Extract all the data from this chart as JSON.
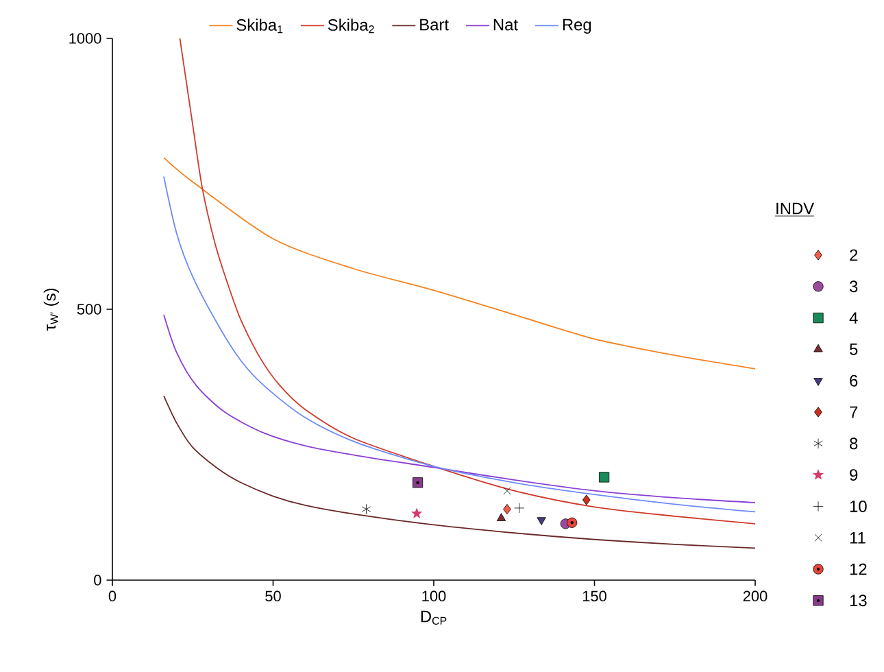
{
  "chart_data": {
    "type": "line",
    "xlabel": "D$_{CP}$",
    "ylabel": "τ$_{W′}$ (s)",
    "legend_title": "INDV",
    "legend": "right",
    "xlim": [
      0,
      200
    ],
    "ylim": [
      0,
      1000
    ],
    "xticks": [
      0,
      50,
      100,
      150,
      200
    ],
    "yticks": [
      0,
      500,
      1000
    ],
    "series": [
      {
        "name": "Skiba$_{1}$",
        "color": "#f58220",
        "x": [
          16,
          25,
          50,
          75,
          100,
          125,
          150,
          175,
          200
        ],
        "values": [
          780,
          735,
          630,
          575,
          535,
          490,
          445,
          415,
          390
        ]
      },
      {
        "name": "Skiba$_{2}$",
        "color": "#d03a2a",
        "x": [
          21,
          25,
          28,
          32,
          36,
          40,
          46,
          52,
          60,
          75,
          100,
          125,
          150,
          175,
          200
        ],
        "values": [
          1000,
          840,
          723,
          620,
          545,
          480,
          410,
          360,
          315,
          262,
          210,
          165,
          135,
          118,
          104
        ]
      },
      {
        "name": "Bart",
        "color": "#6b2a2a",
        "x": [
          16,
          20,
          25,
          33,
          40,
          50,
          60,
          75,
          100,
          125,
          150,
          175,
          200
        ],
        "values": [
          340,
          290,
          245,
          205,
          180,
          155,
          138,
          122,
          102,
          87,
          75,
          66,
          59
        ]
      },
      {
        "name": "Nat",
        "color": "#8a3fd6",
        "x": [
          16,
          20,
          26,
          35,
          47,
          60,
          76,
          100,
          125,
          150,
          175,
          200
        ],
        "values": [
          490,
          420,
          360,
          310,
          272,
          248,
          230,
          208,
          185,
          165,
          152,
          143
        ]
      },
      {
        "name": "Reg",
        "color": "#6d8cf5",
        "x": [
          16,
          20,
          25,
          33,
          40,
          47,
          60,
          76,
          100,
          125,
          150,
          175,
          200
        ],
        "values": [
          745,
          640,
          560,
          470,
          405,
          360,
          300,
          254,
          210,
          180,
          158,
          140,
          126
        ]
      },
      {
        "name": "2",
        "type": "scatter",
        "marker": "diamond",
        "color": "#f25c4a",
        "x": [
          122.8
        ],
        "values": [
          131
        ]
      },
      {
        "name": "3",
        "type": "scatter",
        "marker": "circle",
        "color": "#9b4a9e",
        "x": [
          141
        ],
        "values": [
          104
        ]
      },
      {
        "name": "4",
        "type": "scatter",
        "marker": "square",
        "color": "#1a8a5a",
        "x": [
          153
        ],
        "values": [
          190
        ]
      },
      {
        "name": "5",
        "type": "scatter",
        "marker": "triangle",
        "color": "#7a3030",
        "x": [
          121
        ],
        "values": [
          114
        ]
      },
      {
        "name": "6",
        "type": "scatter",
        "marker": "triangle-down",
        "color": "#4a3a80",
        "x": [
          133.5
        ],
        "values": [
          111
        ]
      },
      {
        "name": "7",
        "type": "scatter",
        "marker": "diamond",
        "color": "#c8301e",
        "x": [
          147.5
        ],
        "values": [
          148
        ]
      },
      {
        "name": "8",
        "type": "scatter",
        "color": "#000000",
        "x": [
          79
        ],
        "values": [
          131
        ]
      },
      {
        "name": "9",
        "type": "scatter",
        "marker": "star",
        "color": "#d63a6a",
        "x": [
          94.7
        ],
        "values": [
          123
        ]
      },
      {
        "name": "10",
        "type": "scatter",
        "marker": "plus",
        "color": "#000000",
        "x": [
          126.6
        ],
        "values": [
          133
        ]
      },
      {
        "name": "11",
        "type": "scatter",
        "marker": "cross",
        "color": "#000000",
        "x": [
          122.8
        ],
        "values": [
          165
        ]
      },
      {
        "name": "12",
        "type": "scatter",
        "marker": "circle-dot",
        "color": "#e8453a",
        "x": [
          143
        ],
        "values": [
          106
        ]
      },
      {
        "name": "13",
        "type": "scatter",
        "marker": "square-dot",
        "color": "#8a3a8a",
        "x": [
          95
        ],
        "values": [
          180
        ]
      }
    ]
  }
}
